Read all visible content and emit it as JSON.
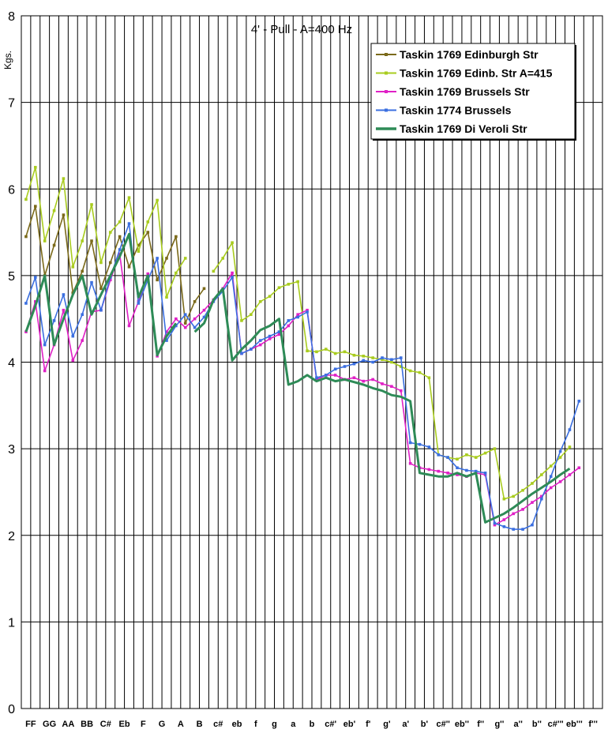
{
  "chart_data": {
    "type": "line",
    "title": "4' - Pull - A=400 Hz",
    "ylabel": "Kgs.",
    "xlabel": "",
    "ylim": [
      0,
      8
    ],
    "yticks": [
      0,
      1,
      2,
      3,
      4,
      5,
      6,
      7,
      8
    ],
    "grid": true,
    "legend_position": "top-right",
    "categories": [
      "FF",
      "GG",
      "AA",
      "BB",
      "C#",
      "Eb",
      "F",
      "G",
      "A",
      "B",
      "c#",
      "eb",
      "f",
      "g",
      "a",
      "b",
      "c#'",
      "eb'",
      "f'",
      "g'",
      "a'",
      "b'",
      "c#''",
      "eb''",
      "f''",
      "g''",
      "a''",
      "b''",
      "c#'''",
      "eb'''",
      "f'''"
    ],
    "semitone_points_per_category": 2,
    "series": [
      {
        "name": "Taskin 1769 Edinburgh Str",
        "color": "#7b6a1a",
        "marker": true,
        "segments": [
          {
            "start": 0,
            "values": [
              5.45,
              5.8,
              5.0,
              5.35,
              5.7,
              4.8,
              5.05,
              5.4,
              4.85,
              5.15,
              5.45,
              5.1,
              5.35,
              5.5,
              4.95,
              5.2,
              5.45,
              4.45,
              4.7,
              4.85
            ]
          }
        ]
      },
      {
        "name": "Taskin 1769 Edinb. Str A=415",
        "color": "#a9cc1f",
        "marker": true,
        "segments": [
          {
            "start": 0,
            "values": [
              5.88,
              6.25,
              5.4,
              5.75,
              6.12,
              5.1,
              5.4,
              5.82,
              5.15,
              5.5,
              5.62,
              5.9,
              5.28,
              5.62,
              5.87,
              4.75,
              5.03,
              5.2
            ]
          },
          {
            "start": 20,
            "values": [
              5.05,
              5.2,
              5.38,
              4.48,
              4.55,
              4.7,
              4.76,
              4.86,
              4.9,
              4.93,
              4.13,
              4.12,
              4.15,
              4.1,
              4.12,
              4.08,
              4.07,
              4.05,
              4.03,
              4.0,
              3.95,
              3.9,
              3.88,
              3.82,
              2.93,
              2.9,
              2.88,
              2.93,
              2.9,
              2.95,
              3.0,
              2.42,
              2.45,
              2.52,
              2.6,
              2.7,
              2.8,
              2.9,
              3.02
            ]
          }
        ]
      },
      {
        "name": "Taskin 1769 Brussels Str",
        "color": "#e020c6",
        "marker": true,
        "segments": [
          {
            "start": 0,
            "values": [
              4.35,
              4.7,
              3.9,
              4.2,
              4.6,
              4.02,
              4.25,
              4.58,
              4.6,
              4.95,
              5.25,
              4.42,
              4.7,
              5.02,
              4.07,
              4.35,
              4.5,
              4.4,
              4.5,
              4.6,
              4.72,
              4.85,
              5.03,
              4.1,
              4.15,
              4.2,
              4.27,
              4.32,
              4.42,
              4.55,
              4.6,
              3.8,
              3.85,
              3.85,
              3.8,
              3.82,
              3.78,
              3.8,
              3.75,
              3.72,
              3.67,
              2.83,
              2.78,
              2.76,
              2.74,
              2.72,
              2.7,
              2.68,
              2.72,
              2.7,
              2.12,
              2.18,
              2.25,
              2.3,
              2.38,
              2.45,
              2.55,
              2.62,
              2.7,
              2.78
            ]
          }
        ]
      },
      {
        "name": "Taskin 1774 Brussels",
        "color": "#3b6fe0",
        "marker": true,
        "segments": [
          {
            "start": 0,
            "values": [
              4.68,
              4.98,
              4.2,
              4.48,
              4.78,
              4.3,
              4.55,
              4.92,
              4.6,
              4.98,
              5.3,
              5.6,
              4.68,
              4.95,
              5.2,
              4.25,
              4.42,
              4.55,
              4.4,
              4.52,
              4.7,
              4.82,
              4.98,
              4.1,
              4.15,
              4.25,
              4.3,
              4.35,
              4.48,
              4.52,
              4.58,
              3.82,
              3.85,
              3.92,
              3.95,
              3.98,
              4.02,
              4.0,
              4.05,
              4.03,
              4.05,
              3.07,
              3.05,
              3.02,
              2.93,
              2.9,
              2.78,
              2.75,
              2.74,
              2.72,
              2.14,
              2.1,
              2.07,
              2.07,
              2.12,
              2.42,
              2.68,
              2.97,
              3.22,
              3.55
            ]
          }
        ]
      },
      {
        "name": "Taskin 1769 Di Veroli Str",
        "color": "#2e8b57",
        "marker": false,
        "segments": [
          {
            "start": 0,
            "values": [
              4.35,
              4.65,
              5.0,
              4.2,
              4.5,
              4.78,
              5.0,
              4.55,
              4.78,
              5.0,
              5.22,
              5.48,
              4.75,
              5.0,
              4.08,
              4.3,
              4.45
            ]
          },
          {
            "start": 18,
            "values": [
              4.35,
              4.45,
              4.72,
              4.85,
              4.02,
              4.15,
              4.25,
              4.37,
              4.42,
              4.5,
              3.74,
              3.78,
              3.85,
              3.78,
              3.82,
              3.78,
              3.8,
              3.77,
              3.74,
              3.7,
              3.67,
              3.62,
              3.6,
              3.55,
              2.72,
              2.7,
              2.68,
              2.68,
              2.72,
              2.68,
              2.72,
              2.15,
              2.2,
              2.25,
              2.32,
              2.4,
              2.48,
              2.55,
              2.62,
              2.7,
              2.77
            ]
          }
        ]
      }
    ]
  }
}
